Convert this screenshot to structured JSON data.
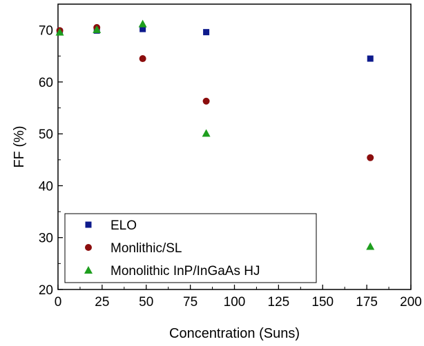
{
  "chart_data": {
    "type": "scatter",
    "xlabel": "Concentration (Suns)",
    "ylabel": "FF (%)",
    "xlim": [
      0,
      200
    ],
    "ylim": [
      20,
      75
    ],
    "xticks": [
      0,
      25,
      50,
      75,
      100,
      125,
      150,
      175,
      200
    ],
    "yticks": [
      20,
      30,
      40,
      50,
      60,
      70
    ],
    "grid": false,
    "legend_position": "bottom-left",
    "series": [
      {
        "name": "ELO",
        "marker": "square",
        "color": "#0d1a8c",
        "x": [
          1,
          22,
          48,
          84,
          177
        ],
        "y": [
          69.7,
          69.9,
          70.2,
          69.6,
          64.5
        ]
      },
      {
        "name": "Monlithic/SL",
        "marker": "circle",
        "color": "#8b0d0d",
        "x": [
          1,
          22,
          48,
          84,
          177
        ],
        "y": [
          69.9,
          70.5,
          64.5,
          56.3,
          45.4
        ]
      },
      {
        "name": "Monolithic InP/InGaAs HJ",
        "marker": "triangle",
        "color": "#1e9e1e",
        "x": [
          1,
          22,
          48,
          84,
          177
        ],
        "y": [
          69.6,
          70.1,
          71.2,
          50.1,
          28.3
        ]
      }
    ]
  }
}
